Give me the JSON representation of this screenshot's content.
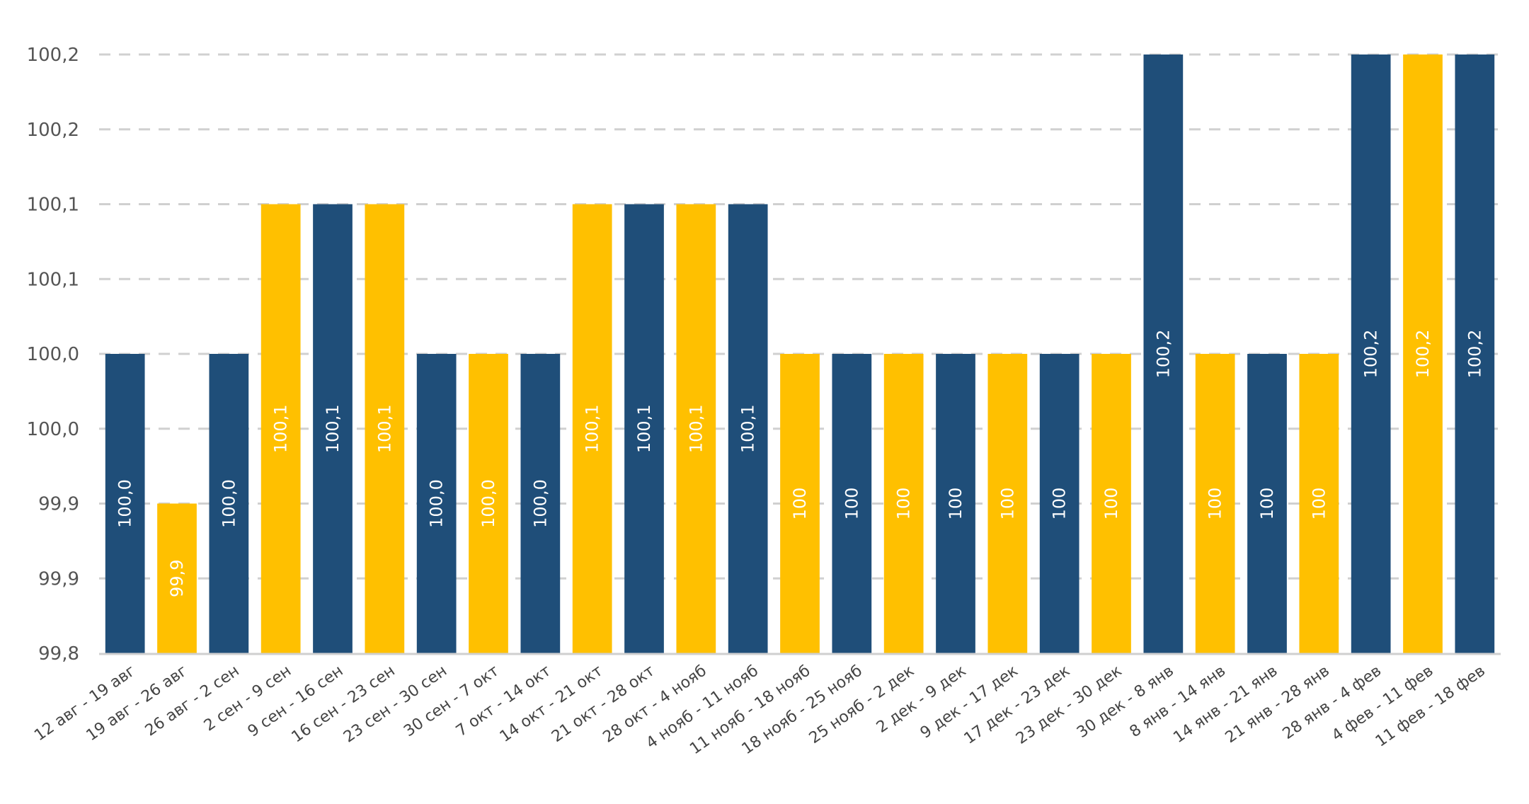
{
  "chart_data": {
    "type": "bar",
    "title": "",
    "xlabel": "",
    "ylabel": "",
    "ylim": [
      99.8,
      100.2
    ],
    "grid": true,
    "legend": "none",
    "y_ticks": [
      {
        "value": 99.8,
        "label": "99,8"
      },
      {
        "value": 99.85,
        "label": "99,9"
      },
      {
        "value": 99.9,
        "label": "99,9"
      },
      {
        "value": 99.95,
        "label": "100,0"
      },
      {
        "value": 100.0,
        "label": "100,0"
      },
      {
        "value": 100.05,
        "label": "100,1"
      },
      {
        "value": 100.1,
        "label": "100,1"
      },
      {
        "value": 100.15,
        "label": "100,2"
      },
      {
        "value": 100.2,
        "label": "100,2"
      }
    ],
    "colors": {
      "dark": "#1f4e79",
      "gold": "#ffc000"
    },
    "categories": [
      "12 авг - 19 авг",
      "19 авг - 26 авг",
      "26 авг - 2 сен",
      "2 сен - 9 сен",
      "9 сен - 16 сен",
      "16 сен - 23 сен",
      "23 сен - 30 сен",
      "30 сен - 7 окт",
      "7 окт - 14 окт",
      "14 окт - 21 окт",
      "21 окт - 28 окт",
      "28 окт - 4 нояб",
      "4 нояб - 11 нояб",
      "11 нояб - 18 нояб",
      "18 нояб - 25 нояб",
      "25 нояб - 2 дек",
      "2 дек - 9 дек",
      "9 дек - 17 дек",
      "17 дек - 23 дек",
      "23 дек - 30 дек",
      "30 дек - 8 янв",
      "8 янв - 14 янв",
      "14 янв - 21 янв",
      "21 янв - 28 янв",
      "28 янв - 4 фев",
      "4 фев - 11 фев",
      "11 фев - 18 фев"
    ],
    "values": [
      100.0,
      99.9,
      100.0,
      100.1,
      100.1,
      100.1,
      100.0,
      100.0,
      100.0,
      100.1,
      100.1,
      100.1,
      100.1,
      100.0,
      100.0,
      100.0,
      100.0,
      100.0,
      100.0,
      100.0,
      100.2,
      100.0,
      100.0,
      100.0,
      100.2,
      100.2,
      100.2
    ],
    "data_labels": [
      "100,0",
      "99,9",
      "100,0",
      "100,1",
      "100,1",
      "100,1",
      "100,0",
      "100,0",
      "100,0",
      "100,1",
      "100,1",
      "100,1",
      "100,1",
      "100",
      "100",
      "100",
      "100",
      "100",
      "100",
      "100",
      "100,2",
      "100",
      "100",
      "100",
      "100,2",
      "100,2",
      "100,2"
    ],
    "bar_colors": [
      "dark",
      "gold",
      "dark",
      "gold",
      "dark",
      "gold",
      "dark",
      "gold",
      "dark",
      "gold",
      "dark",
      "gold",
      "dark",
      "gold",
      "dark",
      "gold",
      "dark",
      "gold",
      "dark",
      "gold",
      "dark",
      "gold",
      "dark",
      "gold",
      "dark",
      "gold",
      "dark"
    ]
  }
}
